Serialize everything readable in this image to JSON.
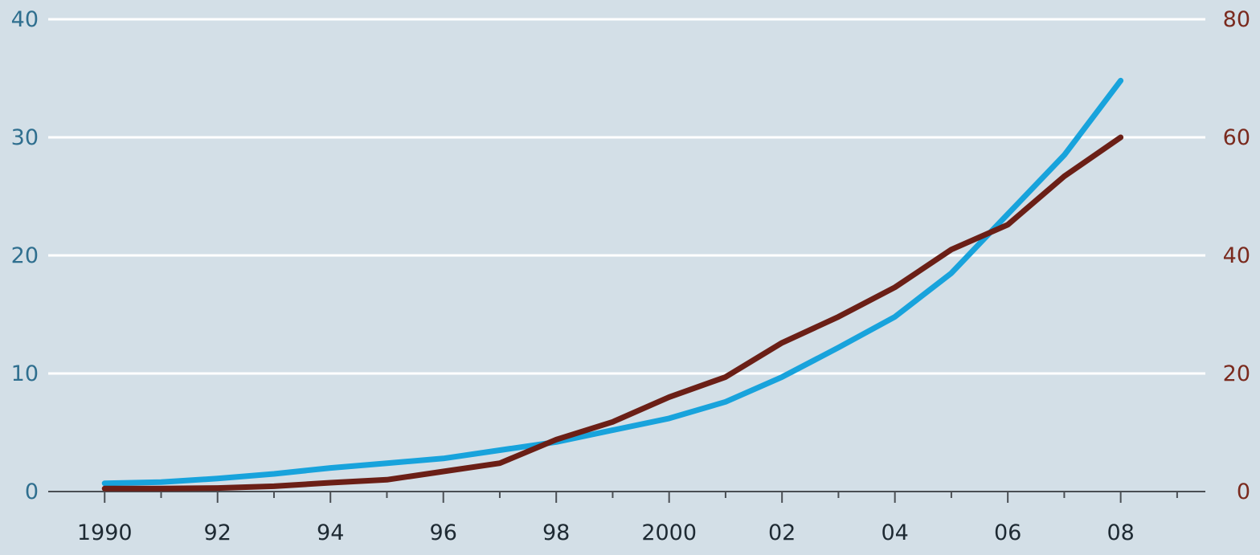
{
  "chart_data": {
    "type": "line",
    "x": [
      1990,
      1991,
      1992,
      1993,
      1994,
      1995,
      1996,
      1997,
      1998,
      1999,
      2000,
      2001,
      2002,
      2003,
      2004,
      2005,
      2006,
      2007,
      2008
    ],
    "x_ticks": [
      1990,
      1992,
      1994,
      1996,
      1998,
      2000,
      2002,
      2004,
      2006,
      2008
    ],
    "x_tick_labels": [
      "1990",
      "92",
      "94",
      "96",
      "98",
      "2000",
      "02",
      "04",
      "06",
      "08"
    ],
    "xlim": [
      1989,
      2009.5
    ],
    "y_left": {
      "lim": [
        0,
        40
      ],
      "ticks": [
        0,
        10,
        20,
        30,
        40
      ],
      "tick_labels": [
        "0",
        "10",
        "20",
        "30",
        "40"
      ],
      "color": "#2f6f8f"
    },
    "y_right": {
      "lim": [
        0,
        80
      ],
      "ticks": [
        0,
        20,
        40,
        60,
        80
      ],
      "tick_labels": [
        "0",
        "20",
        "40",
        "60",
        "80"
      ],
      "color": "#7a2a1e"
    },
    "grid": true,
    "series": [
      {
        "axis": "left",
        "color": "#18a3dc",
        "values": [
          0.7,
          0.8,
          1.1,
          1.5,
          2.0,
          2.4,
          2.8,
          3.5,
          4.2,
          5.2,
          6.2,
          7.6,
          9.7,
          12.2,
          14.8,
          18.5,
          23.5,
          28.5,
          34.8
        ]
      },
      {
        "axis": "right",
        "color": "#6b1f16",
        "values": [
          0.5,
          0.5,
          0.6,
          0.9,
          1.5,
          2.0,
          3.4,
          4.8,
          8.8,
          11.8,
          16.0,
          19.4,
          25.2,
          29.6,
          34.6,
          41.0,
          45.2,
          53.4,
          60.0
        ]
      }
    ]
  }
}
